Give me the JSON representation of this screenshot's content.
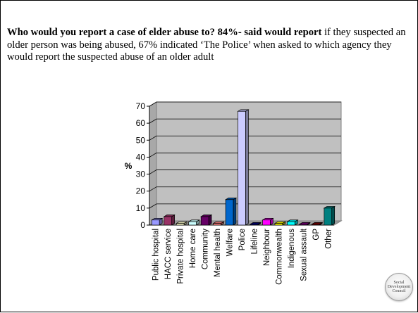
{
  "caption": {
    "bold": "Who would you report a case of elder abuse to? 84%- said would report",
    "rest": " if they suspected an older person was being abused, 67%  indicated ‘The Police’ when asked to which agency they would report the suspected abuse of an older adult"
  },
  "chart_data": {
    "type": "bar",
    "style": "3d-columns",
    "categories": [
      "Public hospital",
      "HACC service",
      "Private hospital",
      "Home care",
      "Community",
      "Mental health",
      "Welfare",
      "Police",
      "Lifeline",
      "Neighbour",
      "Commonwealth",
      "Indigenous",
      "Sexual assault",
      "GP",
      "Other"
    ],
    "values": [
      3,
      5,
      1,
      2,
      5,
      1,
      15,
      67,
      0.5,
      3,
      1,
      2,
      0.5,
      0.5,
      10
    ],
    "colors": [
      "#9999ff",
      "#993366",
      "#ffffcc",
      "#ccffff",
      "#660066",
      "#ff8080",
      "#0066cc",
      "#ccccff",
      "#000080",
      "#ff00ff",
      "#ffff00",
      "#00ffff",
      "#800080",
      "#800000",
      "#008080"
    ],
    "ylabel": "%",
    "ylim": [
      0,
      70
    ],
    "yticks": [
      "0",
      "10",
      "20",
      "30",
      "40",
      "50",
      "60",
      "70"
    ],
    "grid": true,
    "legend": "none"
  },
  "logo": {
    "line1": "Social",
    "line2": "Development",
    "line3": "Council"
  }
}
